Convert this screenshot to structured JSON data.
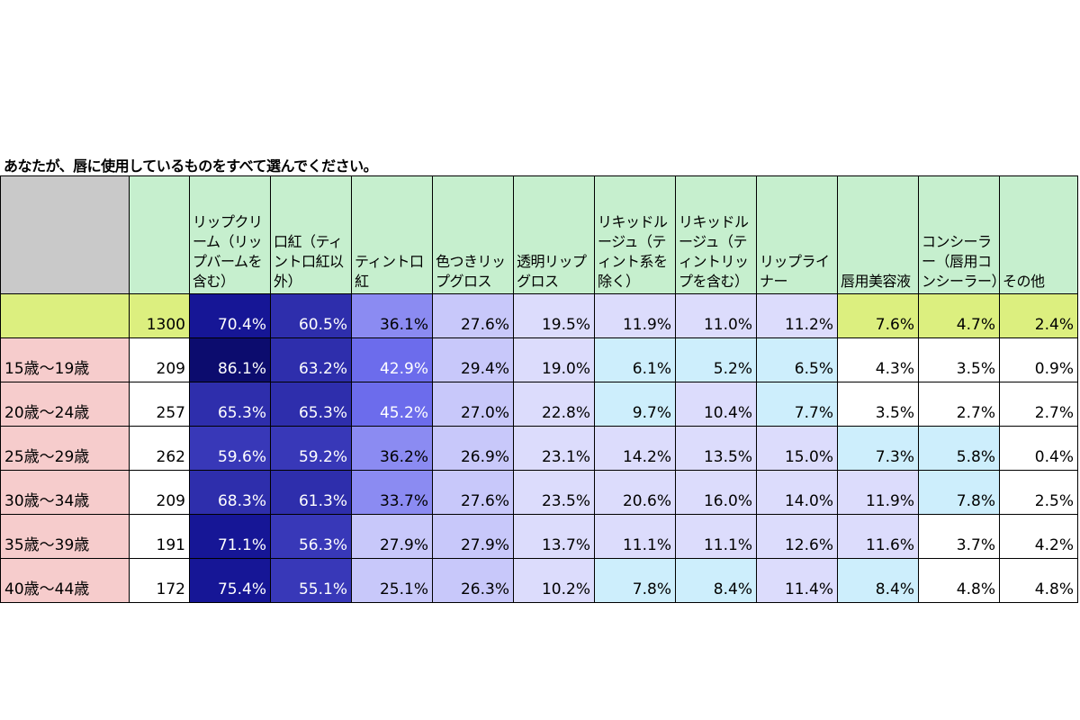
{
  "title": "あなたが、唇に使用しているものをすべて選んでください。",
  "chart_data": {
    "type": "table",
    "columns": [
      "リップクリーム（リップバームを含む）",
      "口紅（ティント口紅以外）",
      "ティント口紅",
      "色つきリップグロス",
      "透明リップグロス",
      "リキッドルージュ（ティント系を除く）",
      "リキッドルージュ（ティントリップを含む）",
      "リップライナー",
      "唇用美容液",
      "コンシーラー（唇用コンシーラー）",
      "その他"
    ],
    "rows": [
      {
        "label": "",
        "n": "1300",
        "values": [
          "70.4%",
          "60.5%",
          "36.1%",
          "27.6%",
          "19.5%",
          "11.9%",
          "11.0%",
          "11.2%",
          "7.6%",
          "4.7%",
          "2.4%"
        ]
      },
      {
        "label": "15歳～19歳",
        "n": "209",
        "values": [
          "86.1%",
          "63.2%",
          "42.9%",
          "29.4%",
          "19.0%",
          "6.1%",
          "5.2%",
          "6.5%",
          "4.3%",
          "3.5%",
          "0.9%"
        ]
      },
      {
        "label": "20歳～24歳",
        "n": "257",
        "values": [
          "65.3%",
          "65.3%",
          "45.2%",
          "27.0%",
          "22.8%",
          "9.7%",
          "10.4%",
          "7.7%",
          "3.5%",
          "2.7%",
          "2.7%"
        ]
      },
      {
        "label": "25歳～29歳",
        "n": "262",
        "values": [
          "59.6%",
          "59.2%",
          "36.2%",
          "26.9%",
          "23.1%",
          "14.2%",
          "13.5%",
          "15.0%",
          "7.3%",
          "5.8%",
          "0.4%"
        ]
      },
      {
        "label": "30歳～34歳",
        "n": "209",
        "values": [
          "68.3%",
          "61.3%",
          "33.7%",
          "27.6%",
          "23.5%",
          "20.6%",
          "16.0%",
          "14.0%",
          "11.9%",
          "7.8%",
          "2.5%"
        ]
      },
      {
        "label": "35歳～39歳",
        "n": "191",
        "values": [
          "71.1%",
          "56.3%",
          "27.9%",
          "27.9%",
          "13.7%",
          "11.1%",
          "11.1%",
          "12.6%",
          "11.6%",
          "3.7%",
          "4.2%"
        ]
      },
      {
        "label": "40歳～44歳",
        "n": "172",
        "values": [
          "75.4%",
          "55.1%",
          "25.1%",
          "26.3%",
          "10.2%",
          "7.8%",
          "8.4%",
          "11.4%",
          "8.4%",
          "4.8%",
          "4.8%"
        ]
      }
    ],
    "colors": {
      "header": "#c6efce",
      "header_blank": "#c9c9c9",
      "age_label": "#f6cccc",
      "total_row": "#dcef7f",
      "scale": [
        {
          "min": 80,
          "bg": "#0c0c6e",
          "fg": "#ffffff"
        },
        {
          "min": 70,
          "bg": "#161696",
          "fg": "#ffffff"
        },
        {
          "min": 60,
          "bg": "#2e2eac",
          "fg": "#ffffff"
        },
        {
          "min": 50,
          "bg": "#3838b8",
          "fg": "#ffffff"
        },
        {
          "min": 40,
          "bg": "#6c6cec",
          "fg": "#ffffff"
        },
        {
          "min": 30,
          "bg": "#8b8bf2",
          "fg": "#000000"
        },
        {
          "min": 25,
          "bg": "#c8c8fa",
          "fg": "#000000"
        },
        {
          "min": 10,
          "bg": "#dcdcfc",
          "fg": "#000000"
        },
        {
          "min": 5,
          "bg": "#cdeefc",
          "fg": "#000000"
        },
        {
          "min": 0,
          "bg": "#ffffff",
          "fg": "#000000"
        }
      ]
    }
  }
}
